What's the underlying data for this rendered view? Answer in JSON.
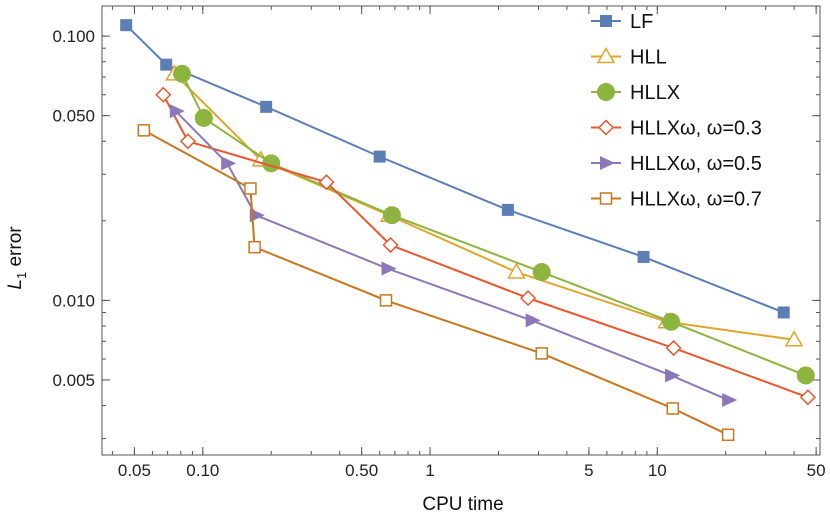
{
  "chart_data": {
    "type": "line",
    "title": "",
    "xlabel": "CPU time",
    "ylabel": "L",
    "ylabel_sub": "1",
    "ylabel_suffix": " error",
    "x_scale": "log",
    "y_scale": "log",
    "xlim": [
      0.036,
      52
    ],
    "ylim": [
      0.0026,
      0.13
    ],
    "grid": false,
    "legend_position": "top-right",
    "x_ticks": [
      {
        "value": 0.05,
        "label": "0.05"
      },
      {
        "value": 0.1,
        "label": "0.10"
      },
      {
        "value": 0.5,
        "label": "0.50"
      },
      {
        "value": 1,
        "label": "1"
      },
      {
        "value": 5,
        "label": "5"
      },
      {
        "value": 10,
        "label": "10"
      },
      {
        "value": 50,
        "label": "50"
      }
    ],
    "y_ticks": [
      {
        "value": 0.005,
        "label": "0.005"
      },
      {
        "value": 0.01,
        "label": "0.010"
      },
      {
        "value": 0.05,
        "label": "0.050"
      },
      {
        "value": 0.1,
        "label": "0.100"
      }
    ],
    "series": [
      {
        "name": "LF",
        "color": "#5B7FB5",
        "marker": "square-filled",
        "x": [
          0.046,
          0.069,
          0.19,
          0.6,
          2.2,
          8.7,
          36
        ],
        "y": [
          0.11,
          0.078,
          0.054,
          0.035,
          0.022,
          0.0146,
          0.009
        ]
      },
      {
        "name": "HLL",
        "color": "#E0A52C",
        "marker": "triangle-open",
        "x": [
          0.075,
          0.18,
          0.66,
          2.4,
          11,
          40
        ],
        "y": [
          0.072,
          0.034,
          0.021,
          0.0128,
          0.0083,
          0.0071
        ]
      },
      {
        "name": "HLLX",
        "color": "#8DB43E",
        "marker": "circle-filled",
        "x": [
          0.081,
          0.101,
          0.2,
          0.68,
          3.1,
          11.5,
          45
        ],
        "y": [
          0.072,
          0.049,
          0.033,
          0.021,
          0.0128,
          0.0083,
          0.0052
        ]
      },
      {
        "name": "HLLXω, ω=0.3",
        "color": "#E8572E",
        "marker": "diamond-open",
        "x": [
          0.067,
          0.086,
          0.35,
          0.67,
          2.7,
          11.8,
          46
        ],
        "y": [
          0.06,
          0.04,
          0.028,
          0.0162,
          0.0102,
          0.0066,
          0.0043
        ]
      },
      {
        "name": "HLLXω, ω=0.5",
        "color": "#8C77B8",
        "marker": "triangle-right-filled",
        "x": [
          0.076,
          0.128,
          0.171,
          0.65,
          2.8,
          11.5,
          20.5
        ],
        "y": [
          0.052,
          0.033,
          0.021,
          0.0132,
          0.0084,
          0.0052,
          0.0042
        ]
      },
      {
        "name": "HLLXω, ω=0.7",
        "color": "#C9771F",
        "marker": "square-open",
        "x": [
          0.055,
          0.162,
          0.169,
          0.64,
          3.1,
          11.7,
          20.5
        ],
        "y": [
          0.044,
          0.0265,
          0.0159,
          0.01,
          0.0063,
          0.0039,
          0.0031
        ]
      }
    ]
  }
}
